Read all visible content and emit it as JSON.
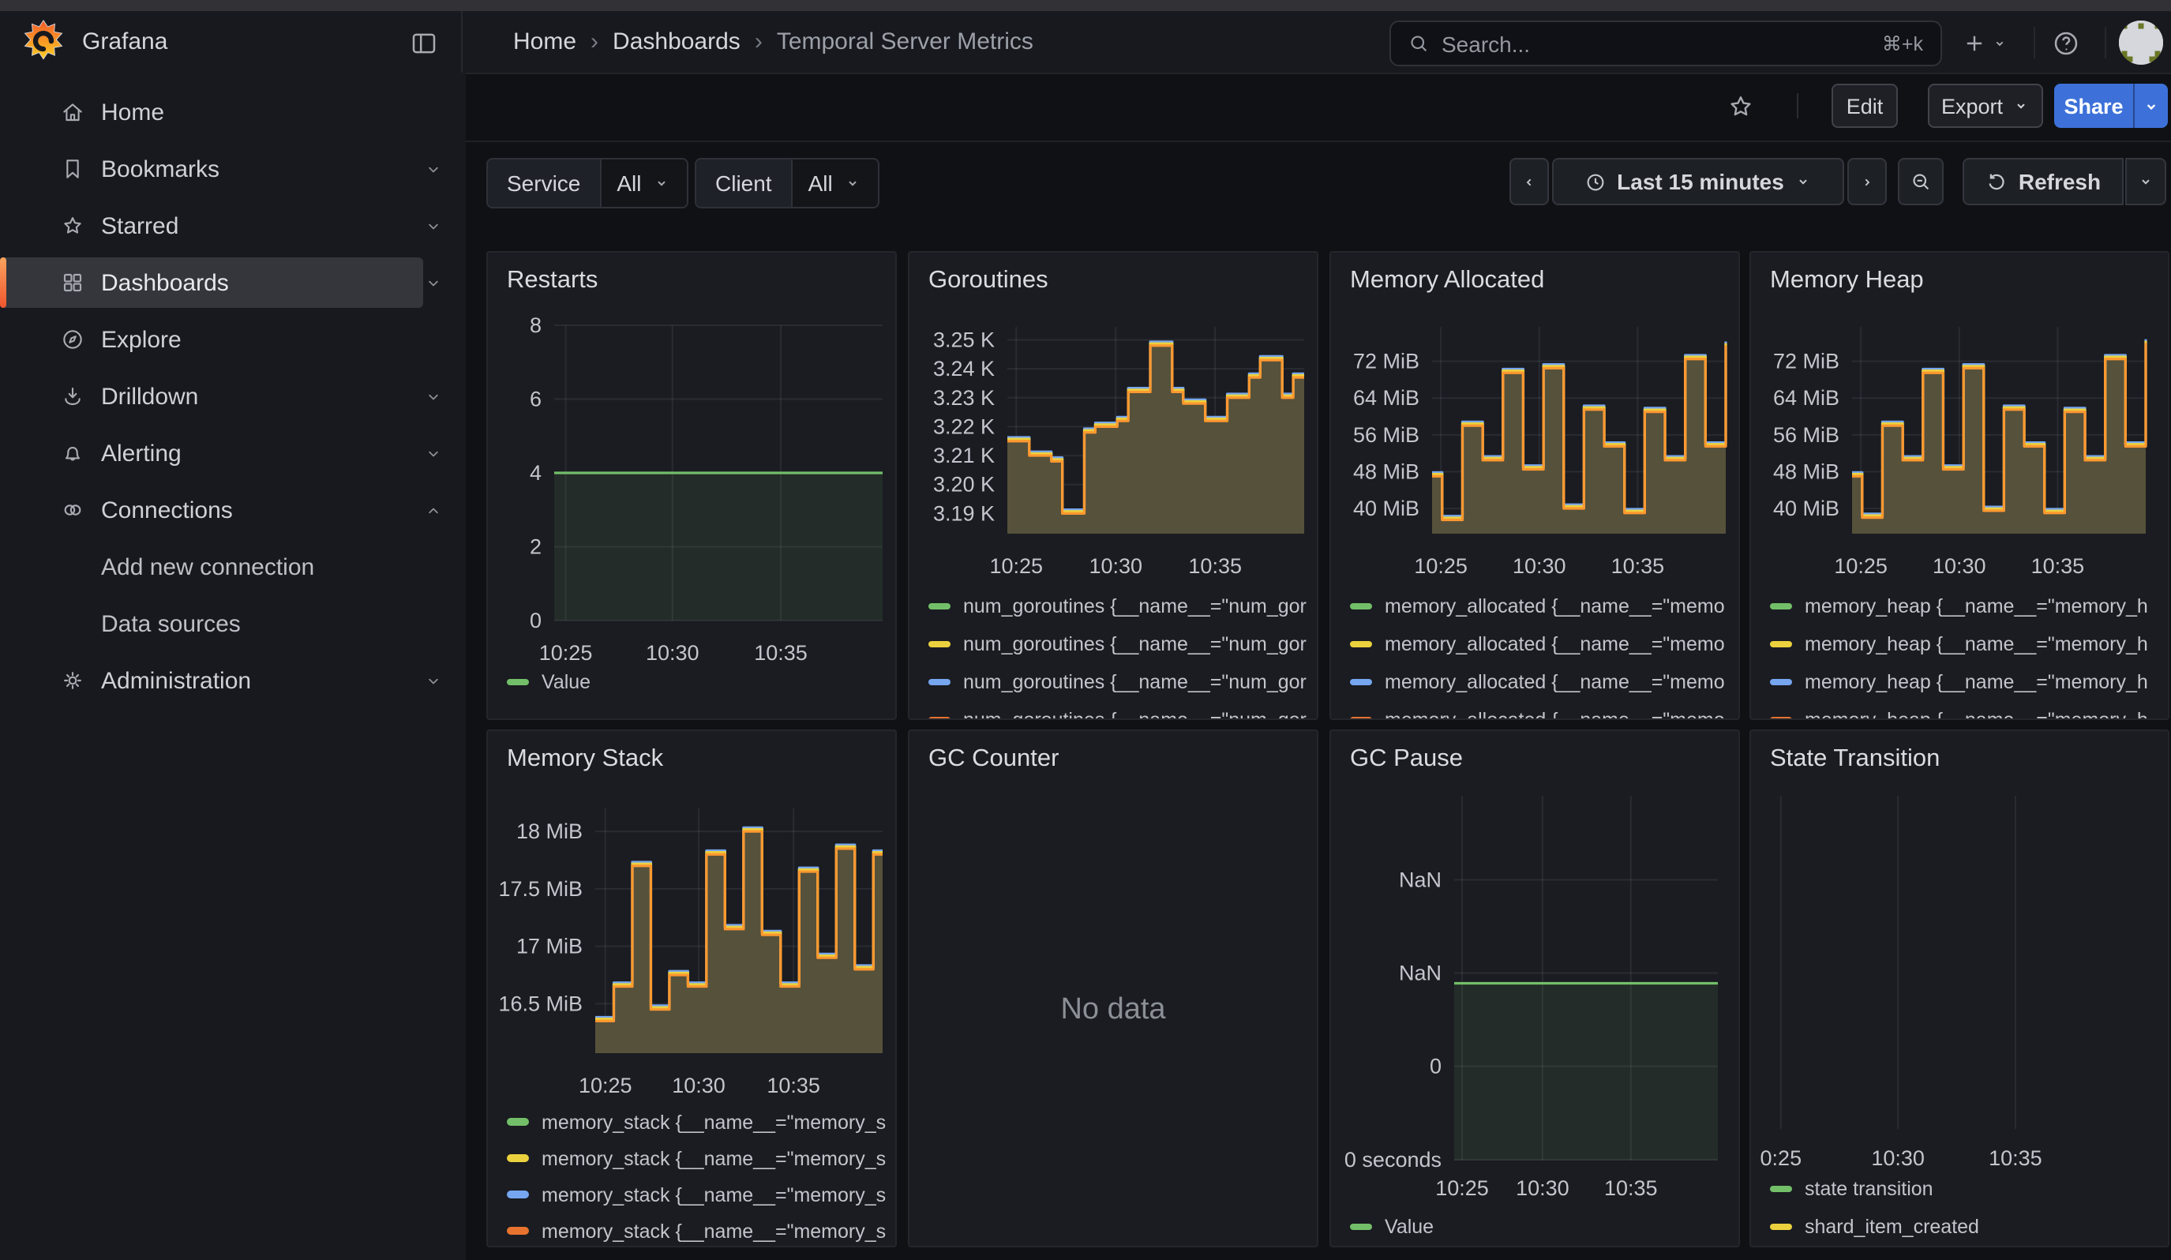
{
  "window": {
    "product": "Grafana"
  },
  "header": {
    "breadcrumbs": [
      "Home",
      "Dashboards",
      "Temporal Server Metrics"
    ],
    "search": {
      "placeholder": "Search...",
      "shortcut": "⌘+k"
    }
  },
  "subheader": {
    "edit_label": "Edit",
    "export_label": "Export",
    "share_label": "Share"
  },
  "sidebar": {
    "items": [
      {
        "label": "Home",
        "icon": "home-icon"
      },
      {
        "label": "Bookmarks",
        "icon": "bookmark-icon",
        "chevron": "down"
      },
      {
        "label": "Starred",
        "icon": "star-icon",
        "chevron": "down"
      },
      {
        "label": "Dashboards",
        "icon": "dashboards-grid-icon",
        "chevron": "down",
        "active": true
      },
      {
        "label": "Explore",
        "icon": "compass-icon"
      },
      {
        "label": "Drilldown",
        "icon": "drilldown-icon",
        "chevron": "down"
      },
      {
        "label": "Alerting",
        "icon": "bell-icon",
        "chevron": "down"
      },
      {
        "label": "Connections",
        "icon": "link-icon",
        "chevron": "up"
      },
      {
        "label": "Add new connection",
        "child": true
      },
      {
        "label": "Data sources",
        "child": true
      },
      {
        "label": "Administration",
        "icon": "gear-icon",
        "chevron": "down"
      }
    ]
  },
  "toolbar": {
    "filters": [
      {
        "label": "Service",
        "value": "All"
      },
      {
        "label": "Client",
        "value": "All"
      }
    ],
    "time_range_label": "Last 15 minutes",
    "refresh_label": "Refresh"
  },
  "colors": {
    "green": "#73BF69",
    "yellow": "#EBD13E",
    "blue": "#76A6F0",
    "orange_line": "#FF9830",
    "orange_swatch": "#E8732E",
    "olive_fill": "#56513A",
    "green_fill": "rgba(115,191,105,0.10)",
    "share_blue": "#3D71D9"
  },
  "chart_data": [
    {
      "type": "line",
      "title": "Restarts",
      "xticks": [
        "10:25",
        "10:30",
        "10:35"
      ],
      "ylim": [
        0,
        8
      ],
      "yticks": [
        {
          "v": 8,
          "label": "8"
        },
        {
          "v": 6,
          "label": "6"
        },
        {
          "v": 4,
          "label": "4"
        },
        {
          "v": 2,
          "label": "2"
        },
        {
          "v": 0,
          "label": "0"
        }
      ],
      "series": [
        {
          "name": "Value",
          "color": "#73BF69",
          "values": [
            4,
            4
          ]
        }
      ],
      "fill": "rgba(115,191,105,0.10)",
      "legend": [
        {
          "color": "#73BF69",
          "label": "Value"
        }
      ]
    },
    {
      "type": "area-step",
      "title": "Goroutines",
      "xticks": [
        "10:25",
        "10:30",
        "10:35"
      ],
      "ylim": [
        3183,
        3254.5
      ],
      "yticks": [
        {
          "v": 3250,
          "label": "3.25 K"
        },
        {
          "v": 3240,
          "label": "3.24 K"
        },
        {
          "v": 3230,
          "label": "3.23 K"
        },
        {
          "v": 3220,
          "label": "3.22 K"
        },
        {
          "v": 3210,
          "label": "3.21 K"
        },
        {
          "v": 3200,
          "label": "3.20 K"
        },
        {
          "v": 3190,
          "label": "3.19 K"
        }
      ],
      "series": [
        {
          "name": "num_goroutines",
          "color": "#FF9830",
          "values": [
            3215,
            3215,
            3210,
            3210,
            3208,
            3190,
            3190,
            3218,
            3220,
            3220,
            3222,
            3232,
            3232,
            3248,
            3248,
            3232,
            3228,
            3228,
            3222,
            3222,
            3230,
            3230,
            3237,
            3243,
            3243,
            3230,
            3237,
            3237
          ]
        }
      ],
      "fill": "#56513A",
      "fringes": [
        {
          "color": "#76A6F0",
          "dy": -2.4
        },
        {
          "color": "#EBD13E",
          "dy": -1.3
        }
      ],
      "legend": [
        {
          "color": "#73BF69",
          "label": "num_goroutines {__name__=\"num_gor"
        },
        {
          "color": "#EBD13E",
          "label": "num_goroutines {__name__=\"num_gor"
        },
        {
          "color": "#76A6F0",
          "label": "num_goroutines {__name__=\"num_gor"
        },
        {
          "color": "#E8732E",
          "label": "num_goroutines {__name__=\"num_gor"
        }
      ]
    },
    {
      "type": "area-step",
      "title": "Memory Allocated",
      "xticks": [
        "10:25",
        "10:30",
        "10:35"
      ],
      "ylim": [
        34.5,
        79.5
      ],
      "unit": "MiB",
      "yticks": [
        {
          "v": 72,
          "label": "72 MiB"
        },
        {
          "v": 64,
          "label": "64 MiB"
        },
        {
          "v": 56,
          "label": "56 MiB"
        },
        {
          "v": 48,
          "label": "48 MiB"
        },
        {
          "v": 40,
          "label": "40 MiB"
        }
      ],
      "series": [
        {
          "name": "memory_allocated",
          "color": "#FF9830",
          "values": [
            47,
            37.5,
            37.5,
            58,
            58,
            50.5,
            50.5,
            69.5,
            69.5,
            48.5,
            48.5,
            70.5,
            70.5,
            40,
            40,
            61.5,
            61.5,
            53.5,
            53.5,
            39,
            39,
            61,
            61,
            50.5,
            50.5,
            72.5,
            72.5,
            53.5,
            53.5,
            75.5
          ]
        }
      ],
      "fill": "#56513A",
      "fringes": [
        {
          "color": "#76A6F0",
          "dy": -2.4
        },
        {
          "color": "#EBD13E",
          "dy": -1.3
        }
      ],
      "legend": [
        {
          "color": "#73BF69",
          "label": "memory_allocated {__name__=\"memo"
        },
        {
          "color": "#EBD13E",
          "label": "memory_allocated {__name__=\"memo"
        },
        {
          "color": "#76A6F0",
          "label": "memory_allocated {__name__=\"memo"
        },
        {
          "color": "#E8732E",
          "label": "memory_allocated {__name__=\"memo"
        }
      ]
    },
    {
      "type": "area-step",
      "title": "Memory Heap",
      "xticks": [
        "10:25",
        "10:30",
        "10:35"
      ],
      "ylim": [
        34.5,
        79.5
      ],
      "unit": "MiB",
      "yticks": [
        {
          "v": 72,
          "label": "72 MiB"
        },
        {
          "v": 64,
          "label": "64 MiB"
        },
        {
          "v": 56,
          "label": "56 MiB"
        },
        {
          "v": 48,
          "label": "48 MiB"
        },
        {
          "v": 40,
          "label": "40 MiB"
        }
      ],
      "series": [
        {
          "name": "memory_heap",
          "color": "#FF9830",
          "values": [
            47,
            38,
            38,
            58,
            58,
            50.5,
            50.5,
            69.5,
            69.5,
            48.5,
            48.5,
            70.5,
            70.5,
            39.5,
            39.5,
            61.5,
            61.5,
            53.5,
            53.5,
            39,
            39,
            61,
            61,
            50.5,
            50.5,
            72.5,
            72.5,
            53.5,
            53.5,
            76
          ]
        }
      ],
      "fill": "#56513A",
      "fringes": [
        {
          "color": "#76A6F0",
          "dy": -2.4
        },
        {
          "color": "#EBD13E",
          "dy": -1.3
        }
      ],
      "legend": [
        {
          "color": "#73BF69",
          "label": "memory_heap {__name__=\"memory_h"
        },
        {
          "color": "#EBD13E",
          "label": "memory_heap {__name__=\"memory_h"
        },
        {
          "color": "#76A6F0",
          "label": "memory_heap {__name__=\"memory_h"
        },
        {
          "color": "#E8732E",
          "label": "memory_heap {__name__=\"memory_h"
        }
      ]
    },
    {
      "type": "area-step",
      "title": "Memory Stack",
      "xticks": [
        "10:25",
        "10:30",
        "10:35"
      ],
      "ylim": [
        16.07,
        18.2
      ],
      "unit": "MiB",
      "yticks": [
        {
          "v": 18,
          "label": "18 MiB"
        },
        {
          "v": 17.5,
          "label": "17.5 MiB"
        },
        {
          "v": 17,
          "label": "17 MiB"
        },
        {
          "v": 16.5,
          "label": "16.5 MiB"
        }
      ],
      "series": [
        {
          "name": "memory_stack",
          "color": "#FF9830",
          "values": [
            16.35,
            16.35,
            16.65,
            16.65,
            17.7,
            17.7,
            16.45,
            16.45,
            16.75,
            16.75,
            16.65,
            16.65,
            17.8,
            17.8,
            17.15,
            17.15,
            18.0,
            18.0,
            17.1,
            17.1,
            16.65,
            16.65,
            17.65,
            17.65,
            16.9,
            16.9,
            17.85,
            17.85,
            16.8,
            16.8,
            17.8,
            17.8
          ]
        }
      ],
      "fill": "#56513A",
      "fringes": [
        {
          "color": "#76A6F0",
          "dy": -2.4
        },
        {
          "color": "#EBD13E",
          "dy": -1.3
        }
      ],
      "legend": [
        {
          "color": "#73BF69",
          "label": "memory_stack {__name__=\"memory_s"
        },
        {
          "color": "#EBD13E",
          "label": "memory_stack {__name__=\"memory_s"
        },
        {
          "color": "#76A6F0",
          "label": "memory_stack {__name__=\"memory_s"
        },
        {
          "color": "#E8732E",
          "label": "memory_stack {__name__=\"memory_s"
        }
      ]
    },
    {
      "type": "none",
      "title": "GC Counter",
      "message": "No data"
    },
    {
      "type": "line",
      "title": "GC Pause",
      "xticks": [
        "10:25",
        "10:30",
        "10:35"
      ],
      "ylim": [
        -0.01,
        3.9
      ],
      "yticks": [
        {
          "v": 3,
          "label": "NaN"
        },
        {
          "v": 2,
          "label": "NaN"
        },
        {
          "v": 1,
          "label": "0"
        },
        {
          "v": 0,
          "label": "0 seconds"
        }
      ],
      "series": [
        {
          "name": "Value",
          "color": "#73BF69",
          "values": [
            1.89,
            1.89
          ]
        }
      ],
      "fill": "rgba(115,191,105,0.10)",
      "legend": [
        {
          "color": "#73BF69",
          "label": "Value"
        }
      ]
    },
    {
      "type": "empty-grid",
      "title": "State Transition",
      "xticks": [
        "0:25",
        "10:30",
        "10:35"
      ],
      "series": [],
      "legend": [
        {
          "color": "#73BF69",
          "label": "state transition"
        },
        {
          "color": "#EBD13E",
          "label": "shard_item_created"
        }
      ]
    }
  ]
}
